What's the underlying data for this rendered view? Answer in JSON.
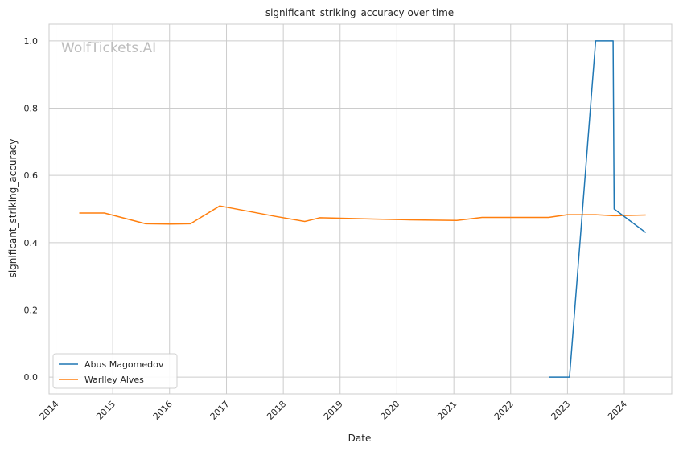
{
  "chart_data": {
    "type": "line",
    "title": "significant_striking_accuracy over time",
    "xlabel": "Date",
    "ylabel": "significant_striking_accuracy",
    "watermark": "WolfTickets.AI",
    "x_ticks": [
      "2014",
      "2015",
      "2016",
      "2017",
      "2018",
      "2019",
      "2020",
      "2021",
      "2022",
      "2023",
      "2024"
    ],
    "y_ticks": [
      "0.0",
      "0.2",
      "0.4",
      "0.6",
      "0.8",
      "1.0"
    ],
    "xlim": [
      "2013-11-18",
      "2024-11-01"
    ],
    "ylim": [
      -0.05,
      1.05
    ],
    "grid": true,
    "legend_position": "lower-left",
    "series": [
      {
        "name": "Abus Magomedov",
        "color": "#1f77b4",
        "points": [
          {
            "x": "2022-09-03",
            "y": 0.0
          },
          {
            "x": "2023-01-14",
            "y": 0.0
          },
          {
            "x": "2023-07-01",
            "y": 1.0
          },
          {
            "x": "2023-10-21",
            "y": 1.0
          },
          {
            "x": "2023-10-28",
            "y": 0.5
          },
          {
            "x": "2024-05-18",
            "y": 0.43
          }
        ]
      },
      {
        "name": "Warlley Alves",
        "color": "#ff7f0e",
        "points": [
          {
            "x": "2014-05-31",
            "y": 0.488
          },
          {
            "x": "2014-11-08",
            "y": 0.488
          },
          {
            "x": "2015-08-01",
            "y": 0.456
          },
          {
            "x": "2016-01-02",
            "y": 0.455
          },
          {
            "x": "2016-05-14",
            "y": 0.456
          },
          {
            "x": "2016-11-19",
            "y": 0.509
          },
          {
            "x": "2017-11-11",
            "y": 0.478
          },
          {
            "x": "2018-05-19",
            "y": 0.463
          },
          {
            "x": "2018-08-25",
            "y": 0.474
          },
          {
            "x": "2019-08-01",
            "y": 0.47
          },
          {
            "x": "2020-03-01",
            "y": 0.468
          },
          {
            "x": "2021-01-20",
            "y": 0.466
          },
          {
            "x": "2021-07-01",
            "y": 0.475
          },
          {
            "x": "2022-09-01",
            "y": 0.475
          },
          {
            "x": "2023-01-01",
            "y": 0.483
          },
          {
            "x": "2023-07-01",
            "y": 0.483
          },
          {
            "x": "2023-11-01",
            "y": 0.48
          },
          {
            "x": "2024-05-18",
            "y": 0.482
          }
        ]
      }
    ]
  }
}
